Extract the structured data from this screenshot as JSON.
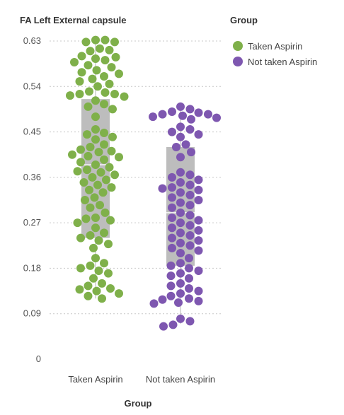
{
  "chart_data": {
    "type": "scatter",
    "subtype": "beeswarm-with-box",
    "title": "FA Left External capsule",
    "xlabel": "Group",
    "ylabel": "",
    "yticks": [
      "0",
      "0.09",
      "0.18",
      "0.27",
      "0.36",
      "0.45",
      "0.54",
      "0.63"
    ],
    "ylim": [
      0,
      0.64
    ],
    "grid": true,
    "legend": {
      "title": "Group",
      "position": "top-right"
    },
    "categories": [
      "Taken Aspirin",
      "Not taken Aspirin"
    ],
    "series": [
      {
        "name": "Taken Aspirin",
        "color": "#7fb04a",
        "box": {
          "q1": 0.24,
          "median": 0.385,
          "q3": 0.515,
          "whisker_low": 0.12,
          "whisker_high": 0.625
        },
        "values": [
          0.632,
          0.632,
          0.628,
          0.628,
          0.615,
          0.612,
          0.61,
          0.6,
          0.598,
          0.595,
          0.592,
          0.588,
          0.582,
          0.578,
          0.572,
          0.568,
          0.565,
          0.56,
          0.555,
          0.55,
          0.545,
          0.54,
          0.53,
          0.528,
          0.525,
          0.525,
          0.522,
          0.52,
          0.512,
          0.505,
          0.5,
          0.495,
          0.48,
          0.455,
          0.448,
          0.445,
          0.44,
          0.435,
          0.425,
          0.42,
          0.415,
          0.412,
          0.41,
          0.405,
          0.402,
          0.4,
          0.395,
          0.39,
          0.385,
          0.38,
          0.375,
          0.372,
          0.37,
          0.365,
          0.36,
          0.355,
          0.35,
          0.345,
          0.34,
          0.335,
          0.33,
          0.32,
          0.315,
          0.305,
          0.3,
          0.29,
          0.28,
          0.278,
          0.275,
          0.27,
          0.26,
          0.25,
          0.245,
          0.24,
          0.235,
          0.228,
          0.22,
          0.2,
          0.19,
          0.185,
          0.18,
          0.175,
          0.17,
          0.16,
          0.15,
          0.145,
          0.14,
          0.138,
          0.135,
          0.13,
          0.125,
          0.12
        ]
      },
      {
        "name": "Not taken Aspirin",
        "color": "#7e57b0",
        "box": {
          "q1": 0.185,
          "median": 0.29,
          "q3": 0.42,
          "whisker_low": 0.07,
          "whisker_high": 0.495
        },
        "values": [
          0.5,
          0.495,
          0.49,
          0.488,
          0.485,
          0.485,
          0.482,
          0.48,
          0.478,
          0.475,
          0.46,
          0.455,
          0.45,
          0.445,
          0.44,
          0.425,
          0.42,
          0.41,
          0.4,
          0.37,
          0.365,
          0.36,
          0.355,
          0.35,
          0.345,
          0.34,
          0.338,
          0.335,
          0.33,
          0.325,
          0.32,
          0.315,
          0.31,
          0.305,
          0.3,
          0.29,
          0.285,
          0.28,
          0.275,
          0.27,
          0.265,
          0.26,
          0.255,
          0.25,
          0.245,
          0.24,
          0.235,
          0.23,
          0.225,
          0.22,
          0.215,
          0.21,
          0.2,
          0.19,
          0.185,
          0.18,
          0.175,
          0.17,
          0.165,
          0.16,
          0.15,
          0.145,
          0.14,
          0.135,
          0.13,
          0.125,
          0.12,
          0.118,
          0.115,
          0.112,
          0.11,
          0.08,
          0.075,
          0.068,
          0.065
        ]
      }
    ]
  }
}
